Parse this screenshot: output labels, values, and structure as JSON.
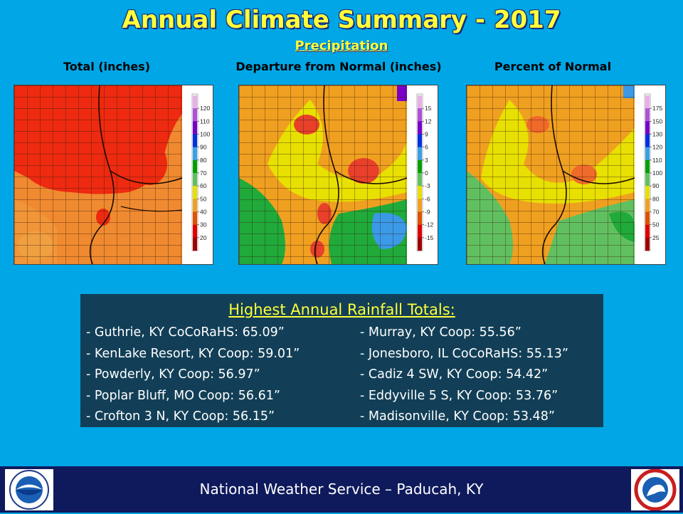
{
  "title": "Annual Climate Summary - 2017",
  "subtitle": "Precipitation",
  "maps": [
    {
      "label": "Total (inches)",
      "legend": {
        "ticks": [
          "120",
          "110",
          "100",
          "90",
          "80",
          "70",
          "60",
          "50",
          "40",
          "30",
          "20"
        ],
        "colors": [
          "#e8b0e8",
          "#b050d8",
          "#7a00c8",
          "#0030e0",
          "#3aa0e8",
          "#00a000",
          "#60c060",
          "#e8e000",
          "#f0a020",
          "#e05000",
          "#e00000",
          "#a00000"
        ]
      }
    },
    {
      "label": "Departure from Normal (inches)",
      "legend": {
        "ticks": [
          "15",
          "12",
          "9",
          "6",
          "3",
          "0",
          "-3",
          "-6",
          "-9",
          "-12",
          "-15"
        ],
        "colors": [
          "#e8b0e8",
          "#b050d8",
          "#7a00c8",
          "#0030e0",
          "#3aa0e8",
          "#00a000",
          "#60c060",
          "#e8e000",
          "#f0a020",
          "#e05000",
          "#e00000",
          "#a00000"
        ]
      }
    },
    {
      "label": "Percent of Normal",
      "legend": {
        "ticks": [
          "175",
          "150",
          "130",
          "120",
          "110",
          "100",
          "90",
          "80",
          "70",
          "50",
          "25"
        ],
        "colors": [
          "#e8b0e8",
          "#b050d8",
          "#7a00c8",
          "#0030e0",
          "#3aa0e8",
          "#00a000",
          "#60c060",
          "#e8e000",
          "#f0a020",
          "#e05000",
          "#e00000",
          "#a00000"
        ]
      }
    }
  ],
  "rainfall": {
    "title": "Highest Annual Rainfall Totals:",
    "left": [
      "- Guthrie, KY CoCoRaHS: 65.09”",
      "- KenLake Resort, KY Coop: 59.01”",
      "- Powderly, KY Coop: 56.97”",
      "- Poplar Bluff, MO Coop: 56.61”",
      "- Crofton 3 N, KY Coop: 56.15”"
    ],
    "right": [
      "- Murray, KY Coop: 55.56”",
      "- Jonesboro, IL CoCoRaHS: 55.13”",
      "- Cadiz 4 SW, KY Coop: 54.42”",
      "- Eddyville 5 S, KY Coop: 53.76”",
      "- Madisonville, KY Coop: 53.48”"
    ]
  },
  "footer": {
    "text": "National Weather Service – Paducah, KY",
    "left_logo": "noaa-logo",
    "right_logo": "nws-logo"
  },
  "colors": {
    "background": "#00a6e6",
    "title": "#ffff3a",
    "panel": "#123f57",
    "footer": "#0e1a5c"
  }
}
